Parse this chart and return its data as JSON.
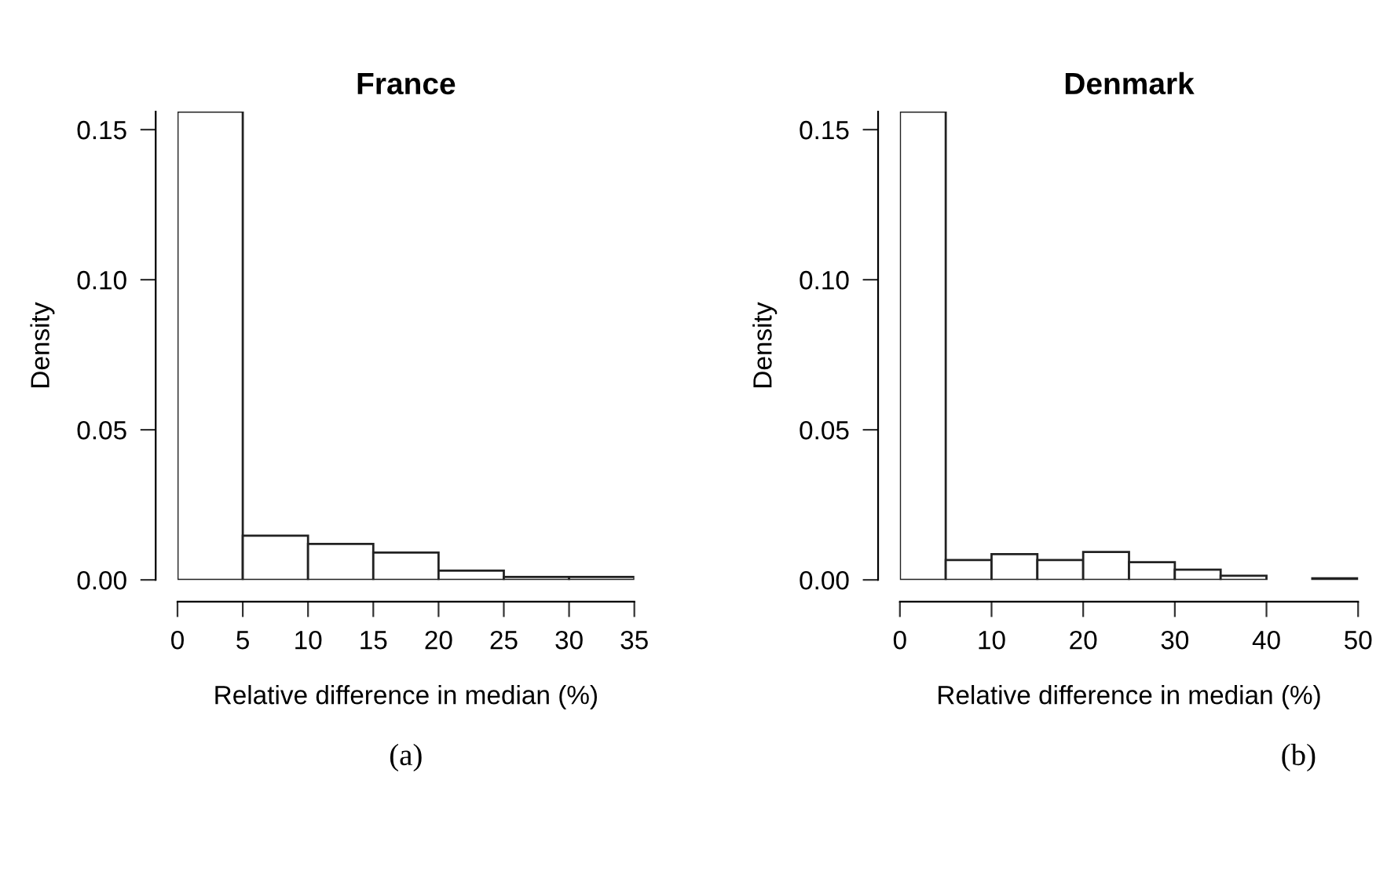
{
  "chart_data": [
    {
      "type": "histogram",
      "title": "France",
      "xlabel": "Relative difference in median (%)",
      "ylabel": "Density",
      "bins": [
        0,
        5,
        10,
        15,
        20,
        25,
        30,
        35
      ],
      "values": [
        0.156,
        0.0147,
        0.012,
        0.0091,
        0.0031,
        0.001,
        0.001
      ],
      "color": "#ffffff",
      "xlim": [
        0,
        35
      ],
      "xticks": [
        0,
        5,
        10,
        15,
        20,
        25,
        30,
        35
      ],
      "ylim": [
        0,
        0.156
      ],
      "yticks": [
        {
          "value": 0,
          "label": "0.00"
        },
        {
          "value": 0.05,
          "label": "0.05"
        },
        {
          "value": 0.1,
          "label": "0.10"
        },
        {
          "value": 0.15,
          "label": "0.15"
        }
      ],
      "grid": false,
      "annotations": [
        "(a)"
      ]
    },
    {
      "type": "histogram",
      "title": "Denmark",
      "xlabel": "Relative difference in median (%)",
      "ylabel": "Density",
      "bins": [
        0,
        5,
        10,
        15,
        20,
        25,
        30,
        35,
        40,
        45,
        50
      ],
      "values": [
        0.156,
        0.0066,
        0.0086,
        0.0066,
        0.0093,
        0.0059,
        0.0034,
        0.0014,
        0,
        0.0005
      ],
      "color": "#ffffff",
      "xlim": [
        0,
        50
      ],
      "xticks": [
        0,
        10,
        20,
        30,
        40,
        50
      ],
      "ylim": [
        0,
        0.156
      ],
      "yticks": [
        {
          "value": 0,
          "label": "0.00"
        },
        {
          "value": 0.05,
          "label": "0.05"
        },
        {
          "value": 0.1,
          "label": "0.10"
        },
        {
          "value": 0.15,
          "label": "0.15"
        }
      ],
      "grid": false,
      "annotations": [
        "(b)"
      ]
    }
  ]
}
